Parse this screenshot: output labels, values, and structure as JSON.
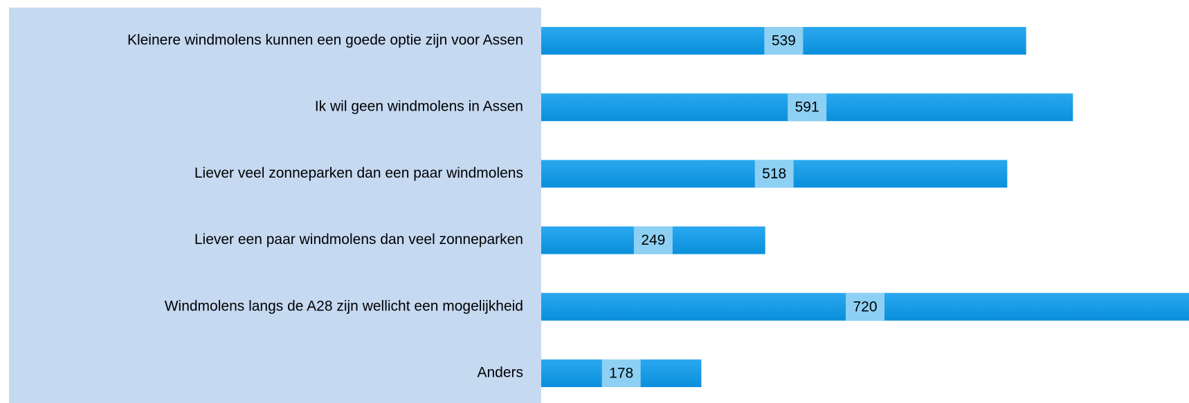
{
  "chart_data": {
    "type": "bar",
    "orientation": "horizontal",
    "categories": [
      "Kleinere windmolens kunnen een goede optie zijn voor Assen",
      "Ik wil geen windmolens in Assen",
      "Liever veel zonneparken dan een paar windmolens",
      "Liever een paar windmolens dan veel zonneparken",
      "Windmolens langs de A28 zijn wellicht een mogelijkheid",
      "Anders"
    ],
    "values": [
      539,
      591,
      518,
      249,
      720,
      178
    ],
    "color": "#129be6",
    "xlim": [
      0,
      720
    ]
  }
}
